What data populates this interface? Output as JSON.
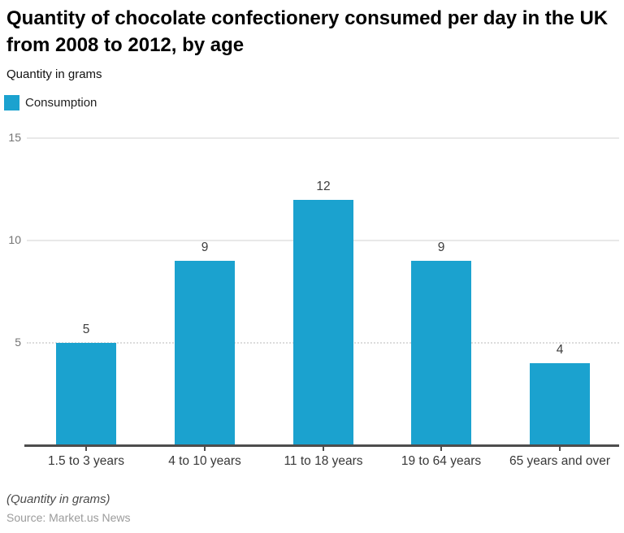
{
  "header": {
    "title": "Quantity of chocolate confectionery consumed per day in the UK from 2008 to 2012, by age",
    "subtitle": "Quantity in grams"
  },
  "legend": {
    "label": "Consumption"
  },
  "chart_data": {
    "type": "bar",
    "title": "Quantity of chocolate confectionery consumed per day in the UK from 2008 to 2012, by age",
    "subtitle": "Quantity in grams",
    "categories": [
      "1.5 to 3 years",
      "4 to 10 years",
      "11 to 18 years",
      "19 to 64 years",
      "65 years and over"
    ],
    "values": [
      5,
      9,
      12,
      9,
      4
    ],
    "series_name": "Consumption",
    "value_labels": [
      "5",
      "9",
      "12",
      "9",
      "4"
    ],
    "xlabel": "",
    "ylabel": "Quantity in grams",
    "ylim": [
      0,
      15
    ],
    "yticks": [
      5,
      10,
      15
    ],
    "gridline_styles": {
      "5": "dotted",
      "10": "solid",
      "15": "solid"
    },
    "grid": "horizontal",
    "legend_position": "top-left",
    "bar_color": "#1ba2cf",
    "axis_color": "#4d4d4d"
  },
  "footer": {
    "note": "(Quantity in grams)",
    "source": "Source: Market.us News"
  }
}
